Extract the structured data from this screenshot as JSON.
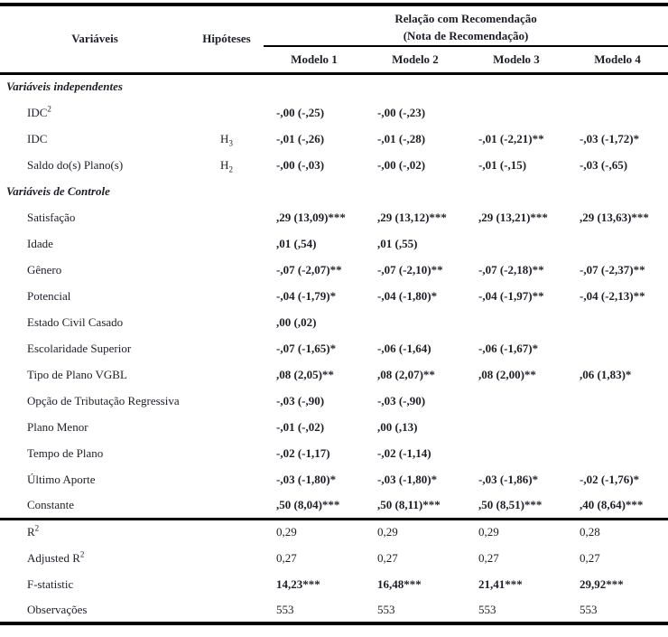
{
  "colors": {
    "text": "#1c1f26",
    "rule": "#000000",
    "background": "#ffffff"
  },
  "header": {
    "variables_label": "Variáveis",
    "hypotheses_label": "Hipóteses",
    "span_title_line1": "Relação com Recomendação",
    "span_title_line2": "(Nota de Recomendação)",
    "model_columns": [
      "Modelo 1",
      "Modelo 2",
      "Modelo 3",
      "Modelo 4"
    ]
  },
  "rows": [
    {
      "type": "section",
      "label": "Variáveis independentes"
    },
    {
      "type": "data",
      "label": "IDC",
      "label_sup": "2",
      "hyp": "",
      "hyp_sub": "",
      "bold_values": true,
      "values": [
        "-,00 (-,25)",
        "-,00 (-,23)",
        "",
        ""
      ]
    },
    {
      "type": "data",
      "label": "IDC",
      "hyp": "H",
      "hyp_sub": "3",
      "bold_values": true,
      "values": [
        "-,01 (-,26)",
        "-,01 (-,28)",
        "-,01 (-2,21)**",
        "-,03 (-1,72)*"
      ]
    },
    {
      "type": "data",
      "label": "Saldo do(s) Plano(s)",
      "hyp": "H",
      "hyp_sub": "2",
      "bold_values": true,
      "values": [
        "-,00 (-,03)",
        "-,00 (-,02)",
        "-,01 (-,15)",
        "-,03 (-,65)"
      ]
    },
    {
      "type": "section",
      "label": "Variáveis de Controle"
    },
    {
      "type": "data",
      "label": "Satisfação",
      "hyp": "",
      "hyp_sub": "",
      "bold_values": true,
      "values": [
        ",29 (13,09)***",
        ",29 (13,12)***",
        ",29 (13,21)***",
        ",29 (13,63)***"
      ]
    },
    {
      "type": "data",
      "label": "Idade",
      "hyp": "",
      "hyp_sub": "",
      "bold_values": true,
      "values": [
        ",01 (,54)",
        ",01 (,55)",
        "",
        ""
      ]
    },
    {
      "type": "data",
      "label": "Gênero",
      "hyp": "",
      "hyp_sub": "",
      "bold_values": true,
      "values": [
        "-,07 (-2,07)**",
        "-,07 (-2,10)**",
        "-,07 (-2,18)**",
        "-,07 (-2,37)**"
      ]
    },
    {
      "type": "data",
      "label": "Potencial",
      "hyp": "",
      "hyp_sub": "",
      "bold_values": true,
      "values": [
        "-,04 (-1,79)*",
        "-,04 (-1,80)*",
        "-,04 (-1,97)**",
        "-,04 (-2,13)**"
      ]
    },
    {
      "type": "data",
      "label": "Estado Civil Casado",
      "hyp": "",
      "hyp_sub": "",
      "bold_values": true,
      "values": [
        ",00 (,02)",
        "",
        "",
        ""
      ]
    },
    {
      "type": "data",
      "label": "Escolaridade Superior",
      "hyp": "",
      "hyp_sub": "",
      "bold_values": true,
      "values": [
        "-,07 (-1,65)*",
        "-,06 (-1,64)",
        "-,06 (-1,67)*",
        ""
      ]
    },
    {
      "type": "data",
      "label": "Tipo de Plano VGBL",
      "hyp": "",
      "hyp_sub": "",
      "bold_values": true,
      "values": [
        ",08 (2,05)**",
        ",08 (2,07)**",
        ",08 (2,00)**",
        ",06 (1,83)*"
      ]
    },
    {
      "type": "data",
      "label": "Opção de Tributação Regressiva",
      "hyp": "",
      "hyp_sub": "",
      "bold_values": true,
      "values": [
        "-,03 (-,90)",
        "-,03 (-,90)",
        "",
        ""
      ]
    },
    {
      "type": "data",
      "label": "Plano Menor",
      "hyp": "",
      "hyp_sub": "",
      "bold_values": true,
      "values": [
        "-,01 (-,02)",
        ",00 (,13)",
        "",
        ""
      ]
    },
    {
      "type": "data",
      "label": "Tempo de Plano",
      "hyp": "",
      "hyp_sub": "",
      "bold_values": true,
      "values": [
        "-,02 (-1,17)",
        "-,02 (-1,14)",
        "",
        ""
      ]
    },
    {
      "type": "data",
      "label": "Último Aporte",
      "hyp": "",
      "hyp_sub": "",
      "bold_values": true,
      "values": [
        "-,03 (-1,80)*",
        "-,03 (-1,80)*",
        "-,03 (-1,86)*",
        "-,02 (-1,76)*"
      ]
    },
    {
      "type": "data",
      "label": "Constante",
      "hyp": "",
      "hyp_sub": "",
      "bold_values": true,
      "values": [
        ",50 (8,04)***",
        ",50 (8,11)***",
        ",50 (8,51)***",
        ",40 (8,64)***"
      ]
    },
    {
      "type": "data",
      "label": "R",
      "label_sup": "2",
      "hyp": "",
      "hyp_sub": "",
      "divider_above": true,
      "bold_values": false,
      "values": [
        "0,29",
        "0,29",
        "0,29",
        "0,28"
      ]
    },
    {
      "type": "data",
      "label": "Adjusted R",
      "label_sup": "2",
      "hyp": "",
      "hyp_sub": "",
      "bold_values": false,
      "values": [
        "0,27",
        "0,27",
        "0,27",
        "0,27"
      ]
    },
    {
      "type": "data",
      "label": "F-statistic",
      "hyp": "",
      "hyp_sub": "",
      "bold_values": true,
      "values": [
        "14,23***",
        "16,48***",
        "21,41***",
        "29,92***"
      ]
    },
    {
      "type": "data",
      "label": "Observações",
      "hyp": "",
      "hyp_sub": "",
      "bold_values": false,
      "values": [
        "553",
        "553",
        "553",
        "553"
      ]
    }
  ]
}
